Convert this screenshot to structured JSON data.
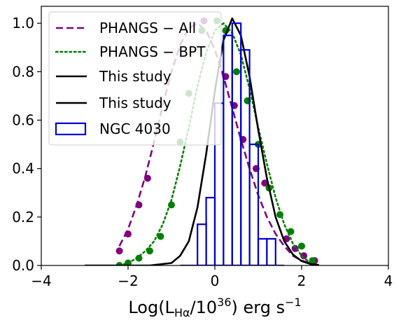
{
  "chart_data": {
    "type": "line",
    "title": "",
    "xlabel": {
      "prefix": "Log(L",
      "subscript": "Hα",
      "middle": "/10",
      "superscript": "36",
      "suffix": ") erg s",
      "suffix_superscript": "−1"
    },
    "ylabel": "",
    "xlim": [
      -4,
      4
    ],
    "ylim": [
      0,
      1.07
    ],
    "xticks": [
      -4,
      -2,
      0,
      2,
      4
    ],
    "yticks": [
      0.0,
      0.2,
      0.4,
      0.6,
      0.8,
      1.0
    ],
    "xtick_labels": [
      "−4",
      "−2",
      "0",
      "2",
      "4"
    ],
    "ytick_labels": [
      "0.0",
      "0.2",
      "0.4",
      "0.6",
      "0.8",
      "1.0"
    ],
    "grid": false,
    "legend_position": "top-left",
    "series": [
      {
        "name": "PHANGS − All",
        "kind": "dashed-line",
        "color": "#800080",
        "x": [
          -2.2,
          -2.0,
          -1.8,
          -1.6,
          -1.4,
          -1.2,
          -1.0,
          -0.8,
          -0.6,
          -0.4,
          -0.2,
          0.0,
          0.2,
          0.4,
          0.6,
          0.8,
          1.0,
          1.2,
          1.4,
          1.6,
          1.8,
          2.0,
          2.2,
          2.3
        ],
        "y": [
          0.08,
          0.15,
          0.25,
          0.37,
          0.51,
          0.66,
          0.8,
          0.91,
          0.98,
          1.0,
          0.97,
          0.89,
          0.78,
          0.65,
          0.52,
          0.4,
          0.29,
          0.2,
          0.13,
          0.08,
          0.04,
          0.02,
          0.01,
          0.005
        ]
      },
      {
        "name": "PHANGS − All points",
        "kind": "markers",
        "color": "#800080",
        "x": [
          -2.2,
          -2.0,
          -1.75,
          -1.55,
          -0.25,
          0.25,
          0.45,
          0.65,
          0.95,
          1.15,
          1.65,
          1.85,
          2.05,
          2.3
        ],
        "y": [
          0.06,
          0.13,
          0.25,
          0.36,
          1.01,
          0.78,
          0.66,
          0.52,
          0.4,
          0.34,
          0.11,
          0.07,
          0.04,
          0.02
        ]
      },
      {
        "name": "PHANGS − BPT",
        "kind": "dotted-line",
        "color": "#008000",
        "x": [
          -2.2,
          -2.0,
          -1.8,
          -1.6,
          -1.4,
          -1.2,
          -1.0,
          -0.8,
          -0.6,
          -0.4,
          -0.2,
          0.0,
          0.2,
          0.4,
          0.6,
          0.8,
          1.0,
          1.2,
          1.4,
          1.6,
          1.8,
          2.0,
          2.2
        ],
        "y": [
          0.0,
          0.01,
          0.03,
          0.06,
          0.1,
          0.17,
          0.27,
          0.41,
          0.57,
          0.74,
          0.88,
          0.97,
          1.0,
          0.96,
          0.87,
          0.73,
          0.57,
          0.42,
          0.28,
          0.17,
          0.09,
          0.04,
          0.01
        ]
      },
      {
        "name": "PHANGS − BPT points",
        "kind": "markers",
        "color": "#008000",
        "x": [
          -2.2,
          -2.0,
          -1.75,
          -1.5,
          -1.25,
          -1.0,
          -0.8,
          -0.6,
          -0.3,
          0.05,
          0.25,
          0.5,
          0.75,
          1.0,
          1.25,
          1.5,
          1.75,
          2.0,
          2.25
        ],
        "y": [
          0.0,
          0.01,
          0.03,
          0.06,
          0.12,
          0.25,
          0.51,
          0.71,
          0.97,
          1.01,
          0.97,
          0.8,
          0.68,
          0.5,
          0.32,
          0.21,
          0.14,
          0.08,
          0.02
        ]
      },
      {
        "name": "This study",
        "kind": "solid-line",
        "color": "#000000",
        "x": [
          -3.0,
          -2.0,
          -1.5,
          -1.0,
          -0.8,
          -0.6,
          -0.4,
          -0.2,
          0.0,
          0.2,
          0.4,
          0.6,
          0.8,
          1.0,
          1.2,
          1.4,
          1.6,
          1.8,
          2.0,
          2.2,
          2.4
        ],
        "y": [
          0.0,
          0.0,
          0.0,
          0.01,
          0.04,
          0.1,
          0.24,
          0.46,
          0.72,
          0.93,
          1.02,
          0.95,
          0.78,
          0.56,
          0.36,
          0.2,
          0.1,
          0.045,
          0.018,
          0.006,
          0.002
        ]
      },
      {
        "name": "NGC 4030",
        "kind": "histogram",
        "color": "#0000cc",
        "bin_edges": [
          -0.8,
          -0.4,
          -0.2,
          0.0,
          0.2,
          0.4,
          0.6,
          0.8,
          1.0,
          1.2,
          1.4,
          1.6
        ],
        "values": [
          0.0,
          0.17,
          0.28,
          0.67,
          0.95,
          1.0,
          0.89,
          0.5,
          0.11,
          0.11,
          0.0
        ]
      }
    ],
    "legend": [
      {
        "label": "PHANGS − All",
        "style": "dashed",
        "color": "#800080"
      },
      {
        "label": "PHANGS − BPT",
        "style": "dotted",
        "color": "#008000"
      },
      {
        "label": "This study",
        "style": "solid",
        "color": "#000000"
      },
      {
        "label": "This study",
        "style": "solid",
        "color": "#000000"
      },
      {
        "label": "NGC 4030",
        "style": "box",
        "color": "#0000cc"
      }
    ]
  }
}
